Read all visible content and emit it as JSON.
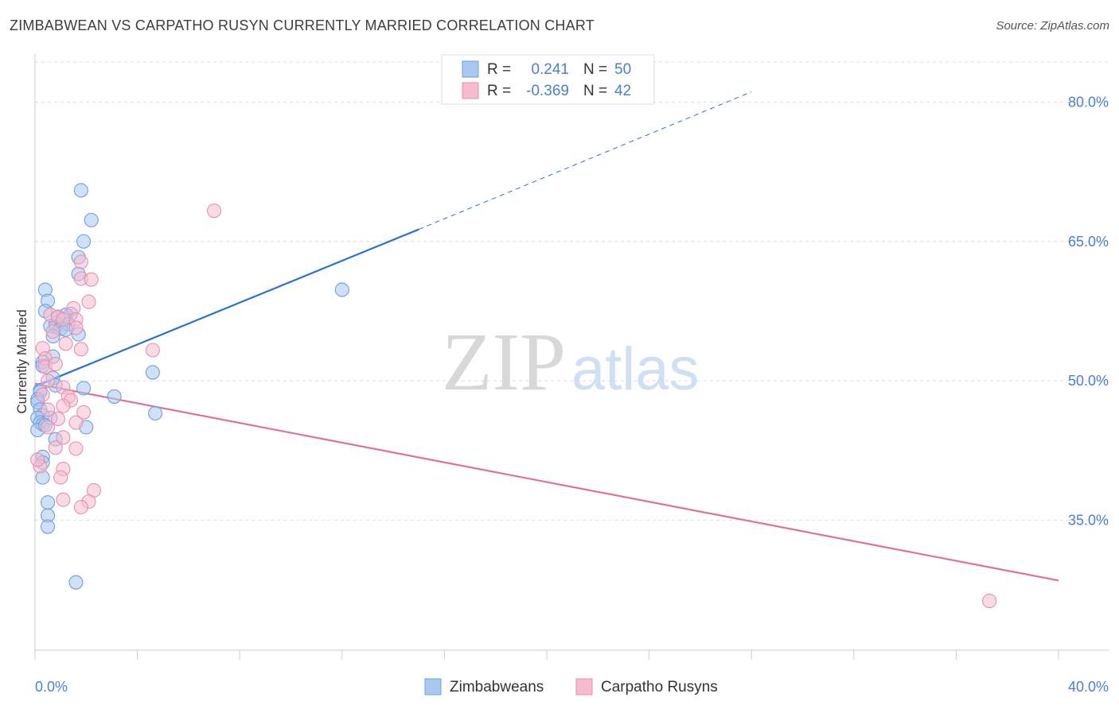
{
  "header": {
    "title": "ZIMBABWEAN VS CARPATHO RUSYN CURRENTLY MARRIED CORRELATION CHART",
    "source": "Source: ZipAtlas.com"
  },
  "watermark": {
    "zip": "ZIP",
    "atlas": "atlas"
  },
  "colors": {
    "blue_fill": "#a9c8f0",
    "blue_stroke": "#6e9fdc",
    "blue_line": "#2a72d0",
    "pink_fill": "#f5bcd0",
    "pink_stroke": "#e88fb0",
    "pink_line": "#e0709a",
    "tick_text": "#4a7fd4",
    "grid": "#dddddd"
  },
  "legend": {
    "rows": [
      {
        "r_label": "R =",
        "r_value": "0.241",
        "n_label": "N =",
        "n_value": "50",
        "series": "blue"
      },
      {
        "r_label": "R =",
        "r_value": "-0.369",
        "n_label": "N =",
        "n_value": "42",
        "series": "pink"
      }
    ]
  },
  "chart_data": {
    "type": "scatter",
    "title": "ZIMBABWEAN VS CARPATHO RUSYN CURRENTLY MARRIED CORRELATION CHART",
    "xlabel": "",
    "ylabel": "Currently Married",
    "xlim": [
      0,
      40
    ],
    "ylim": [
      21.0,
      85.0
    ],
    "x_tick_labels": [
      "0.0%",
      "40.0%"
    ],
    "y_ticks": [
      35,
      50,
      65,
      80
    ],
    "y_tick_labels": [
      "35.0%",
      "50.0%",
      "65.0%",
      "80.0%"
    ],
    "series": [
      {
        "name": "Zimbabweans",
        "color": "blue",
        "points": [
          [
            1.8,
            70.5
          ],
          [
            2.2,
            67.3
          ],
          [
            1.9,
            65.0
          ],
          [
            1.7,
            63.3
          ],
          [
            1.7,
            61.5
          ],
          [
            0.4,
            59.8
          ],
          [
            0.5,
            58.6
          ],
          [
            0.4,
            57.5
          ],
          [
            1.4,
            57.2
          ],
          [
            1.2,
            57.1
          ],
          [
            0.9,
            56.8
          ],
          [
            1.3,
            56.1
          ],
          [
            0.8,
            56.2
          ],
          [
            0.8,
            55.8
          ],
          [
            0.6,
            55.9
          ],
          [
            1.0,
            55.6
          ],
          [
            1.2,
            55.5
          ],
          [
            1.7,
            55.0
          ],
          [
            0.7,
            54.8
          ],
          [
            0.7,
            52.6
          ],
          [
            0.3,
            52.0
          ],
          [
            0.3,
            51.6
          ],
          [
            0.7,
            50.3
          ],
          [
            0.8,
            49.5
          ],
          [
            1.9,
            49.2
          ],
          [
            0.2,
            49.0
          ],
          [
            0.2,
            48.8
          ],
          [
            0.1,
            48.0
          ],
          [
            0.1,
            47.7
          ],
          [
            0.2,
            46.9
          ],
          [
            0.3,
            46.3
          ],
          [
            0.1,
            46.0
          ],
          [
            0.2,
            45.5
          ],
          [
            0.3,
            45.3
          ],
          [
            2.0,
            45.0
          ],
          [
            0.1,
            44.7
          ],
          [
            0.8,
            43.7
          ],
          [
            0.3,
            41.8
          ],
          [
            0.3,
            39.6
          ],
          [
            0.5,
            36.9
          ],
          [
            0.5,
            35.5
          ],
          [
            0.5,
            34.3
          ],
          [
            1.6,
            28.3
          ],
          [
            12.0,
            59.8
          ],
          [
            4.6,
            50.9
          ],
          [
            3.1,
            48.3
          ],
          [
            4.7,
            46.5
          ],
          [
            0.6,
            46.0
          ],
          [
            0.4,
            45.2
          ],
          [
            0.3,
            41.2
          ]
        ]
      },
      {
        "name": "Carpatho Rusyns",
        "color": "pink",
        "points": [
          [
            7.0,
            68.3
          ],
          [
            1.8,
            62.8
          ],
          [
            1.8,
            61.0
          ],
          [
            2.2,
            60.9
          ],
          [
            2.1,
            58.5
          ],
          [
            1.5,
            57.8
          ],
          [
            1.6,
            56.6
          ],
          [
            0.6,
            57.1
          ],
          [
            0.9,
            56.9
          ],
          [
            1.1,
            56.6
          ],
          [
            1.6,
            55.7
          ],
          [
            0.7,
            55.3
          ],
          [
            1.2,
            54.0
          ],
          [
            1.8,
            53.4
          ],
          [
            0.3,
            53.5
          ],
          [
            0.4,
            52.4
          ],
          [
            4.6,
            53.3
          ],
          [
            0.4,
            51.5
          ],
          [
            0.8,
            51.8
          ],
          [
            0.5,
            50.0
          ],
          [
            1.1,
            49.3
          ],
          [
            0.3,
            48.5
          ],
          [
            1.3,
            48.3
          ],
          [
            1.4,
            47.9
          ],
          [
            1.1,
            47.3
          ],
          [
            0.5,
            46.9
          ],
          [
            1.9,
            46.6
          ],
          [
            0.9,
            45.9
          ],
          [
            1.6,
            45.5
          ],
          [
            0.5,
            45.0
          ],
          [
            1.1,
            43.9
          ],
          [
            0.8,
            42.8
          ],
          [
            1.6,
            42.7
          ],
          [
            1.1,
            40.5
          ],
          [
            1.0,
            39.6
          ],
          [
            2.3,
            38.2
          ],
          [
            0.2,
            40.8
          ],
          [
            1.1,
            37.2
          ],
          [
            2.1,
            37.0
          ],
          [
            1.8,
            36.4
          ],
          [
            37.3,
            26.3
          ],
          [
            0.1,
            41.5
          ]
        ]
      }
    ],
    "trendlines": [
      {
        "series": "Zimbabweans",
        "solid_from": [
          0,
          49.4
        ],
        "solid_to": [
          15.0,
          66.3
        ],
        "dashed_to": [
          28.0,
          81.1
        ]
      },
      {
        "series": "Carpatho Rusyns",
        "from": [
          0,
          49.7
        ],
        "to": [
          40,
          28.5
        ]
      }
    ],
    "legend_entries": [
      "Zimbabweans",
      "Carpatho Rusyns"
    ]
  }
}
